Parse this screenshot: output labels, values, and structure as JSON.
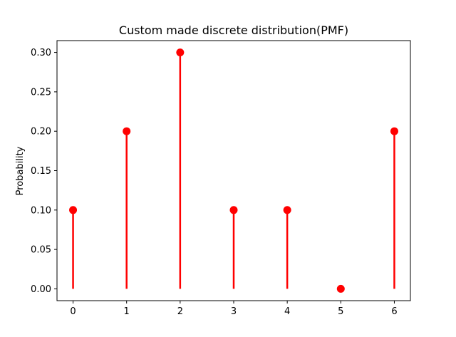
{
  "chart_data": {
    "type": "stem",
    "title": "Custom made discrete distribution(PMF)",
    "xlabel": "",
    "ylabel": "Probability",
    "x": [
      0,
      1,
      2,
      3,
      4,
      5,
      6
    ],
    "values": [
      0.1,
      0.2,
      0.3,
      0.1,
      0.1,
      0.0,
      0.2
    ],
    "xlim": [
      -0.3,
      6.3
    ],
    "ylim": [
      -0.015,
      0.315
    ],
    "xticks": [
      "0",
      "1",
      "2",
      "3",
      "4",
      "5",
      "6"
    ],
    "yticks": [
      "0.00",
      "0.05",
      "0.10",
      "0.15",
      "0.20",
      "0.25",
      "0.30"
    ],
    "grid": false,
    "legend": "none",
    "color": "#ff0000"
  }
}
